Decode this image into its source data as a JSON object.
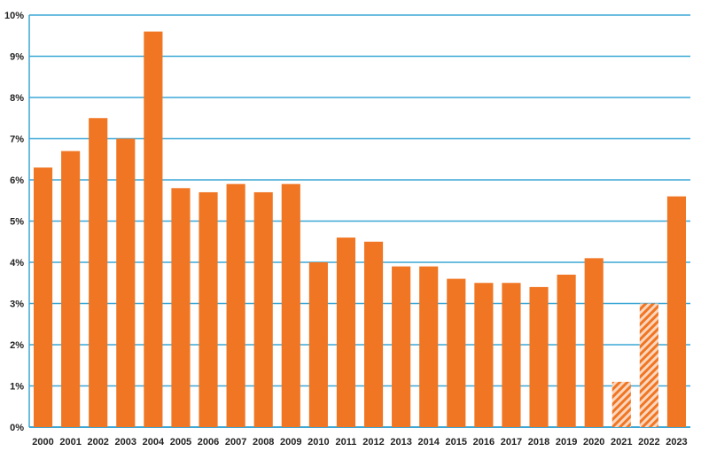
{
  "chart_data": {
    "type": "bar",
    "title": "",
    "xlabel": "",
    "ylabel": "",
    "ylim": [
      0,
      10
    ],
    "grid": true,
    "y_ticks": [
      "0%",
      "1%",
      "2%",
      "3%",
      "4%",
      "5%",
      "6%",
      "7%",
      "8%",
      "9%",
      "10%"
    ],
    "categories": [
      "2000",
      "2001",
      "2002",
      "2003",
      "2004",
      "2005",
      "2006",
      "2007",
      "2008",
      "2009",
      "2010",
      "2011",
      "2012",
      "2013",
      "2014",
      "2015",
      "2016",
      "2017",
      "2018",
      "2019",
      "2020",
      "2021",
      "2022",
      "2023"
    ],
    "values": [
      6.3,
      6.7,
      7.5,
      7.0,
      9.6,
      5.8,
      5.7,
      5.9,
      5.7,
      5.9,
      4.0,
      4.6,
      4.5,
      3.9,
      3.9,
      3.6,
      3.5,
      3.5,
      3.4,
      3.7,
      4.1,
      1.1,
      3.0,
      5.6
    ],
    "hatched": [
      "2021",
      "2022"
    ],
    "colors": {
      "bar": "#F07623",
      "grid": "#3BA7D6",
      "hatch_bg": "#FBD7BF"
    }
  }
}
